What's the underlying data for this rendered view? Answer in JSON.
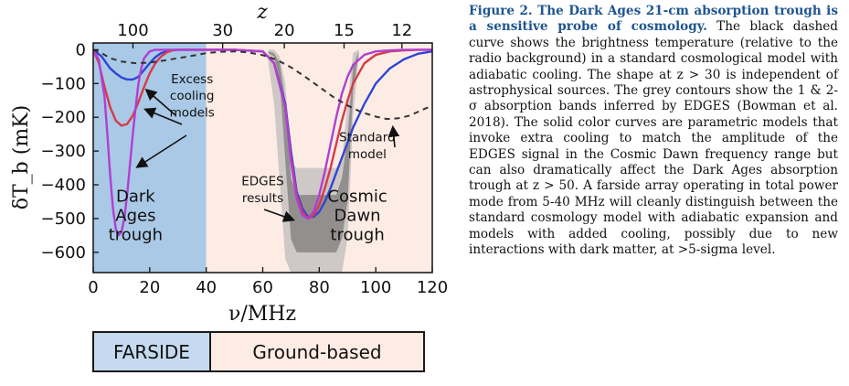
{
  "chart_data": {
    "type": "line",
    "xlabel": "ν/MHz",
    "ylabel": "δT_b (mK)",
    "top_axis_label": "z",
    "xlim": [
      0,
      120
    ],
    "ylim": [
      -660,
      20
    ],
    "x_ticks": [
      "0",
      "20",
      "40",
      "60",
      "80",
      "100",
      "120"
    ],
    "y_ticks": [
      "0",
      "−100",
      "−200",
      "−300",
      "−400",
      "−500",
      "−600"
    ],
    "top_ticks": [
      "100",
      "30",
      "20",
      "15",
      "12"
    ],
    "top_tick_z": [
      100,
      30,
      20,
      15,
      12
    ],
    "shaded_regions": [
      {
        "x": [
          0,
          40
        ],
        "color": "#a9c9e6",
        "label": "Dark Ages trough"
      },
      {
        "x": [
          40,
          120
        ],
        "color": "#fdece4",
        "label": "Cosmic Dawn trough"
      }
    ],
    "edges_bands": {
      "label": "EDGES results",
      "x": [
        62,
        64,
        66,
        68,
        70,
        72,
        74,
        76,
        78,
        80,
        82,
        84,
        86,
        88,
        90,
        92,
        94
      ],
      "outer_lower": [
        -40,
        -160,
        -390,
        -620,
        -660,
        -660,
        -660,
        -660,
        -660,
        -660,
        -660,
        -660,
        -660,
        -660,
        -560,
        -200,
        -20
      ],
      "inner_lower": [
        -10,
        -20,
        -90,
        -330,
        -560,
        -600,
        -600,
        -600,
        -600,
        -600,
        -600,
        -600,
        -600,
        -560,
        -450,
        -120,
        -10
      ],
      "inner_upper": [
        -5,
        -10,
        -40,
        -150,
        -380,
        -430,
        -430,
        -430,
        -430,
        -430,
        -430,
        -430,
        -430,
        -380,
        -260,
        -50,
        -5
      ],
      "outer_upper": [
        0,
        0,
        -20,
        -100,
        -330,
        -350,
        -350,
        -350,
        -350,
        -350,
        -350,
        -350,
        -350,
        -330,
        -160,
        -10,
        0
      ]
    },
    "series": [
      {
        "name": "Standard model",
        "color": "#333333",
        "dashed": true,
        "x": [
          0,
          3,
          6,
          10,
          15,
          20,
          25,
          30,
          35,
          40,
          45,
          50,
          55,
          60,
          65,
          70,
          75,
          80,
          85,
          90,
          95,
          100,
          104,
          108,
          112,
          116,
          120
        ],
        "y": [
          0,
          -10,
          -25,
          -35,
          -40,
          -38,
          -32,
          -25,
          -18,
          -10,
          -6,
          -5,
          -8,
          -16,
          -30,
          -52,
          -80,
          -110,
          -140,
          -165,
          -185,
          -198,
          -205,
          -203,
          -195,
          -180,
          -165
        ]
      },
      {
        "color": "#2f45d6",
        "x": [
          0,
          3,
          6,
          8,
          10,
          12,
          14,
          16,
          18,
          20,
          22,
          24,
          27,
          30,
          35,
          40,
          50,
          60,
          64,
          68,
          70,
          72,
          74,
          76,
          78,
          80,
          82,
          84,
          86,
          88,
          90,
          92,
          96,
          100,
          105,
          110,
          115,
          120
        ],
        "y": [
          0,
          -20,
          -55,
          -70,
          -82,
          -88,
          -88,
          -80,
          -60,
          -40,
          -22,
          -10,
          -2,
          0,
          0,
          0,
          0,
          -5,
          -40,
          -160,
          -300,
          -420,
          -470,
          -495,
          -495,
          -480,
          -450,
          -410,
          -365,
          -320,
          -275,
          -230,
          -160,
          -100,
          -55,
          -28,
          -12,
          -5
        ]
      },
      {
        "color": "#d63a4a",
        "x": [
          0,
          2,
          4,
          6,
          8,
          10,
          12,
          14,
          16,
          18,
          20,
          22,
          24,
          26,
          28,
          30,
          35,
          40,
          50,
          60,
          64,
          68,
          70,
          72,
          74,
          76,
          78,
          80,
          82,
          84,
          86,
          88,
          90,
          92,
          96,
          100,
          105,
          110,
          115,
          120
        ],
        "y": [
          0,
          -40,
          -110,
          -170,
          -210,
          -225,
          -220,
          -195,
          -155,
          -110,
          -70,
          -40,
          -20,
          -8,
          -2,
          0,
          0,
          0,
          0,
          -5,
          -40,
          -170,
          -320,
          -430,
          -480,
          -500,
          -490,
          -460,
          -410,
          -350,
          -280,
          -210,
          -150,
          -100,
          -40,
          -15,
          -5,
          -2,
          0,
          0
        ]
      },
      {
        "color": "#b03fd3",
        "x": [
          0,
          2,
          4,
          5,
          6,
          7,
          8,
          9,
          10,
          11,
          12,
          13,
          14,
          15,
          16,
          17,
          18,
          20,
          22,
          25,
          30,
          35,
          40,
          50,
          60,
          64,
          68,
          70,
          72,
          74,
          76,
          78,
          80,
          82,
          84,
          86,
          88,
          90,
          92,
          96,
          100,
          105,
          110,
          115,
          120
        ],
        "y": [
          0,
          -30,
          -140,
          -250,
          -370,
          -470,
          -530,
          -550,
          -540,
          -500,
          -430,
          -340,
          -250,
          -170,
          -100,
          -55,
          -25,
          -5,
          0,
          0,
          0,
          0,
          0,
          0,
          -5,
          -40,
          -170,
          -330,
          -440,
          -490,
          -500,
          -480,
          -430,
          -360,
          -280,
          -200,
          -130,
          -80,
          -45,
          -15,
          -5,
          -2,
          0,
          0,
          0
        ]
      }
    ],
    "annotations": [
      {
        "text": "Excess",
        "x": 35,
        "y": -85
      },
      {
        "text": "cooling",
        "x": 35,
        "y": -135
      },
      {
        "text": "models",
        "x": 35,
        "y": -185
      },
      {
        "text": "Standard",
        "x": 97,
        "y": -258
      },
      {
        "text": "model",
        "x": 97,
        "y": -308
      },
      {
        "text": "EDGES",
        "x": 60,
        "y": -388
      },
      {
        "text": "results",
        "x": 60,
        "y": -438
      }
    ],
    "region_labels": [
      {
        "lines": [
          "Dark",
          "Ages",
          "trough"
        ],
        "x": 15,
        "y": -450
      },
      {
        "lines": [
          "Cosmic",
          "Dawn",
          "trough"
        ],
        "x": 93.5,
        "y": -450
      }
    ]
  },
  "bar": {
    "farside": "FARSIDE",
    "ground": "Ground-based"
  },
  "caption": {
    "title": "Figure 2. The Dark Ages 21-cm absorption trough is a sensitive probe of cosmology.",
    "body": "The black dashed curve shows the brightness temperature (relative to the radio background) in a standard cosmological model with adiabatic cooling. The shape at z > 30 is independent of astrophysical sources. The grey contours show the 1 & 2-σ absorption bands inferred by EDGES (Bowman et al. 2018). The solid color curves are parametric models that invoke extra cooling to match the amplitude of the EDGES signal in the Cosmic Dawn frequency range but can also dramatically affect the Dark Ages absorption trough at z > 50.  A farside array operating in total power mode from 5-40 MHz will cleanly distinguish between the standard cosmology model with adiabatic expansion and models with added cooling, possibly due to new interactions with dark matter, at >5-sigma level."
  }
}
